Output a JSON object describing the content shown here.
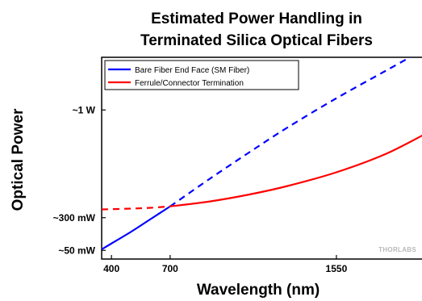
{
  "chart_data": {
    "type": "line",
    "title_lines": [
      "Estimated Power Handling in",
      "Terminated Silica Optical Fibers"
    ],
    "xlabel": "Wavelength (nm)",
    "ylabel": "Optical Power",
    "xlim": [
      350,
      2000
    ],
    "ylim": [
      0,
      100
    ],
    "x_ticks": [
      {
        "value": 400,
        "label": "400"
      },
      {
        "value": 700,
        "label": "700"
      },
      {
        "value": 1550,
        "label": "1550"
      }
    ],
    "y_ticks": [
      {
        "value": 4.3,
        "label": "~50 mW"
      },
      {
        "value": 20.5,
        "label": "~300 mW"
      },
      {
        "value": 73.9,
        "label": "~1 W"
      }
    ],
    "legend_position": "top-left",
    "grid": false,
    "series": [
      {
        "name": "Bare Fiber End Face (SM Fiber)",
        "color": "#0000ff",
        "solid": [
          [
            350,
            4.8
          ],
          [
            400,
            7.7
          ],
          [
            500,
            13.5
          ],
          [
            600,
            19.8
          ],
          [
            700,
            26.1
          ]
        ],
        "dashed": [
          [
            700,
            26.1
          ],
          [
            900,
            39.6
          ],
          [
            1100,
            52.6
          ],
          [
            1300,
            65.2
          ],
          [
            1550,
            79.7
          ],
          [
            1800,
            93.2
          ],
          [
            2000,
            104.0
          ]
        ]
      },
      {
        "name": "Ferrule/Connector Termination",
        "color": "#ff0000",
        "dashed": [
          [
            350,
            24.6
          ],
          [
            500,
            25.0
          ],
          [
            600,
            25.4
          ],
          [
            700,
            26.1
          ]
        ],
        "solid": [
          [
            700,
            26.1
          ],
          [
            900,
            28.5
          ],
          [
            1100,
            31.9
          ],
          [
            1300,
            36.2
          ],
          [
            1550,
            43.0
          ],
          [
            1800,
            52.0
          ],
          [
            2000,
            61.8
          ]
        ]
      }
    ]
  },
  "watermark": "THORLABS"
}
